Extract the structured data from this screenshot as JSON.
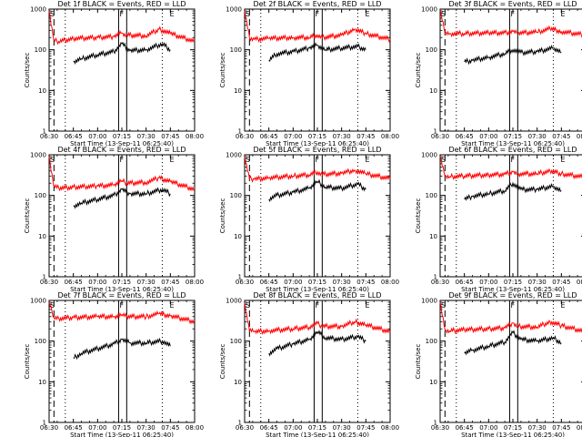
{
  "chart_data": [
    {
      "type": "line",
      "title": "Det 1f BLACK = Events, RED = LLD",
      "xlabel": "Start Time (13-Sep-11 06:25:40)",
      "ylabel": "Counts/sec",
      "yscale": "log",
      "ylim": [
        1,
        1000
      ],
      "xlim": [
        "06:30",
        "08:00"
      ],
      "xticks": [
        "06:30",
        "06:45",
        "07:00",
        "07:15",
        "07:30",
        "07:45",
        "08:00"
      ],
      "yticks": [
        "1",
        "10",
        "100",
        "1000"
      ],
      "markers": [
        "S",
        "F",
        "E"
      ],
      "series": [
        {
          "name": "RED",
          "color": "#ff0000",
          "x": [
            "06:30",
            "06:33",
            "06:36",
            "06:45",
            "07:00",
            "07:10",
            "07:15",
            "07:18",
            "07:30",
            "07:38",
            "07:45",
            "08:00"
          ],
          "y": [
            900,
            170,
            160,
            190,
            200,
            210,
            260,
            230,
            220,
            320,
            250,
            160
          ]
        },
        {
          "name": "BLACK",
          "color": "#000000",
          "x": [
            "06:45",
            "06:50",
            "07:00",
            "07:10",
            "07:15",
            "07:20",
            "07:30",
            "07:40",
            "07:45"
          ],
          "y": [
            50,
            60,
            75,
            90,
            140,
            95,
            100,
            140,
            100
          ]
        }
      ]
    },
    {
      "type": "line",
      "title": "Det 2f BLACK = Events, RED = LLD",
      "xlabel": "Start Time (13-Sep-11 06:25:40)",
      "ylabel": "Counts/sec",
      "yscale": "log",
      "ylim": [
        1,
        1000
      ],
      "xlim": [
        "06:30",
        "08:00"
      ],
      "xticks": [
        "06:30",
        "06:45",
        "07:00",
        "07:15",
        "07:30",
        "07:45",
        "08:00"
      ],
      "yticks": [
        "1",
        "10",
        "100",
        "1000"
      ],
      "markers": [
        "S",
        "F",
        "E"
      ],
      "series": [
        {
          "name": "RED",
          "color": "#ff0000",
          "x": [
            "06:30",
            "06:33",
            "06:36",
            "06:45",
            "07:00",
            "07:10",
            "07:15",
            "07:18",
            "07:30",
            "07:38",
            "07:45",
            "08:00"
          ],
          "y": [
            900,
            200,
            180,
            190,
            200,
            200,
            230,
            200,
            230,
            320,
            250,
            180
          ]
        },
        {
          "name": "BLACK",
          "color": "#000000",
          "x": [
            "06:45",
            "06:50",
            "07:00",
            "07:10",
            "07:15",
            "07:20",
            "07:30",
            "07:40",
            "07:45"
          ],
          "y": [
            55,
            80,
            90,
            110,
            130,
            100,
            110,
            120,
            100
          ]
        }
      ]
    },
    {
      "type": "line",
      "title": "Det 3f BLACK = Events, RED = LLD",
      "xlabel": "Start Time (13-Sep-11 06:25:40)",
      "ylabel": "Counts/sec",
      "yscale": "log",
      "ylim": [
        1,
        1000
      ],
      "xlim": [
        "06:30",
        "08:00"
      ],
      "xticks": [
        "06:30",
        "06:45",
        "07:00",
        "07:15",
        "07:30",
        "07:45",
        "08:00"
      ],
      "yticks": [
        "1",
        "10",
        "100",
        "1000"
      ],
      "markers": [
        "S",
        "F",
        "E"
      ],
      "series": [
        {
          "name": "RED",
          "color": "#ff0000",
          "x": [
            "06:30",
            "06:33",
            "06:36",
            "06:45",
            "07:00",
            "07:10",
            "07:15",
            "07:18",
            "07:30",
            "07:38",
            "07:45",
            "08:00"
          ],
          "y": [
            900,
            260,
            250,
            250,
            260,
            260,
            280,
            260,
            270,
            330,
            280,
            230
          ]
        },
        {
          "name": "BLACK",
          "color": "#000000",
          "x": [
            "06:45",
            "06:50",
            "07:00",
            "07:10",
            "07:15",
            "07:20",
            "07:30",
            "07:40",
            "07:45"
          ],
          "y": [
            50,
            55,
            65,
            80,
            100,
            85,
            90,
            110,
            85
          ]
        }
      ]
    },
    {
      "type": "line",
      "title": "Det 4f BLACK = Events, RED = LLD",
      "xlabel": "Start Time (13-Sep-11 06:25:40)",
      "ylabel": "Counts/sec",
      "yscale": "log",
      "ylim": [
        1,
        1000
      ],
      "xlim": [
        "06:30",
        "08:00"
      ],
      "xticks": [
        "06:30",
        "06:45",
        "07:00",
        "07:15",
        "07:30",
        "07:45",
        "08:00"
      ],
      "yticks": [
        "1",
        "10",
        "100",
        "1000"
      ],
      "markers": [
        "S",
        "F",
        "E"
      ],
      "series": [
        {
          "name": "RED",
          "color": "#ff0000",
          "x": [
            "06:30",
            "06:33",
            "06:36",
            "06:45",
            "07:00",
            "07:10",
            "07:15",
            "07:18",
            "07:30",
            "07:38",
            "07:45",
            "08:00"
          ],
          "y": [
            900,
            170,
            150,
            160,
            170,
            180,
            230,
            200,
            210,
            270,
            220,
            140
          ]
        },
        {
          "name": "BLACK",
          "color": "#000000",
          "x": [
            "06:45",
            "06:50",
            "07:00",
            "07:10",
            "07:15",
            "07:20",
            "07:30",
            "07:40",
            "07:45"
          ],
          "y": [
            55,
            65,
            80,
            100,
            140,
            110,
            110,
            140,
            110
          ]
        }
      ]
    },
    {
      "type": "line",
      "title": "Det 5f BLACK = Events, RED = LLD",
      "xlabel": "Start Time (13-Sep-11 06:25:40)",
      "ylabel": "Counts/sec",
      "yscale": "log",
      "ylim": [
        1,
        1000
      ],
      "xlim": [
        "06:30",
        "08:00"
      ],
      "xticks": [
        "06:30",
        "06:45",
        "07:00",
        "07:15",
        "07:30",
        "07:45",
        "08:00"
      ],
      "yticks": [
        "1",
        "10",
        "100",
        "1000"
      ],
      "markers": [
        "S",
        "F",
        "E"
      ],
      "series": [
        {
          "name": "RED",
          "color": "#ff0000",
          "x": [
            "06:30",
            "06:33",
            "06:36",
            "06:45",
            "07:00",
            "07:10",
            "07:15",
            "07:18",
            "07:30",
            "07:38",
            "07:45",
            "08:00"
          ],
          "y": [
            900,
            260,
            250,
            270,
            300,
            320,
            380,
            330,
            350,
            420,
            340,
            260
          ]
        },
        {
          "name": "BLACK",
          "color": "#000000",
          "x": [
            "06:45",
            "06:50",
            "07:00",
            "07:10",
            "07:15",
            "07:20",
            "07:30",
            "07:40",
            "07:45"
          ],
          "y": [
            80,
            100,
            120,
            150,
            220,
            160,
            150,
            190,
            140
          ]
        }
      ]
    },
    {
      "type": "line",
      "title": "Det 6f BLACK = Events, RED = LLD",
      "xlabel": "Start Time (13-Sep-11 06:25:40)",
      "ylabel": "Counts/sec",
      "yscale": "log",
      "ylim": [
        1,
        1000
      ],
      "xlim": [
        "06:30",
        "08:00"
      ],
      "xticks": [
        "06:30",
        "06:45",
        "07:00",
        "07:15",
        "07:30",
        "07:45",
        "08:00"
      ],
      "yticks": [
        "1",
        "10",
        "100",
        "1000"
      ],
      "markers": [
        "S",
        "F",
        "E"
      ],
      "series": [
        {
          "name": "RED",
          "color": "#ff0000",
          "x": [
            "06:30",
            "06:33",
            "06:36",
            "06:45",
            "07:00",
            "07:10",
            "07:15",
            "07:18",
            "07:30",
            "07:38",
            "07:45",
            "08:00"
          ],
          "y": [
            900,
            300,
            290,
            300,
            320,
            330,
            380,
            340,
            340,
            400,
            340,
            280
          ]
        },
        {
          "name": "BLACK",
          "color": "#000000",
          "x": [
            "06:45",
            "06:50",
            "07:00",
            "07:10",
            "07:15",
            "07:20",
            "07:30",
            "07:40",
            "07:45"
          ],
          "y": [
            80,
            95,
            110,
            130,
            200,
            140,
            140,
            170,
            130
          ]
        }
      ]
    },
    {
      "type": "line",
      "title": "Det 7f BLACK = Events, RED = LLD",
      "xlabel": "Start Time (13-Sep-11 06:25:40)",
      "ylabel": "Counts/sec",
      "yscale": "log",
      "ylim": [
        1,
        1000
      ],
      "xlim": [
        "06:30",
        "08:00"
      ],
      "xticks": [
        "06:30",
        "06:45",
        "07:00",
        "07:15",
        "07:30",
        "07:45",
        "08:00"
      ],
      "yticks": [
        "1",
        "10",
        "100",
        "1000"
      ],
      "markers": [
        "S",
        "F",
        "E"
      ],
      "series": [
        {
          "name": "RED",
          "color": "#ff0000",
          "x": [
            "06:30",
            "06:33",
            "06:36",
            "06:45",
            "07:00",
            "07:10",
            "07:15",
            "07:18",
            "07:30",
            "07:38",
            "07:45",
            "08:00"
          ],
          "y": [
            900,
            380,
            360,
            380,
            400,
            400,
            450,
            400,
            400,
            470,
            420,
            300
          ]
        },
        {
          "name": "BLACK",
          "color": "#000000",
          "x": [
            "06:45",
            "06:50",
            "07:00",
            "07:10",
            "07:15",
            "07:20",
            "07:30",
            "07:40",
            "07:45"
          ],
          "y": [
            38,
            50,
            65,
            85,
            110,
            90,
            90,
            100,
            75
          ]
        }
      ]
    },
    {
      "type": "line",
      "title": "Det 8f BLACK = Events, RED = LLD",
      "xlabel": "Start Time (13-Sep-11 06:25:40)",
      "ylabel": "Counts/sec",
      "yscale": "log",
      "ylim": [
        1,
        1000
      ],
      "xlim": [
        "06:30",
        "08:00"
      ],
      "xticks": [
        "06:30",
        "06:45",
        "07:00",
        "07:15",
        "07:30",
        "07:45",
        "08:00"
      ],
      "yticks": [
        "1",
        "10",
        "100",
        "1000"
      ],
      "markers": [
        "S",
        "F",
        "E"
      ],
      "series": [
        {
          "name": "RED",
          "color": "#ff0000",
          "x": [
            "06:30",
            "06:33",
            "06:36",
            "06:45",
            "07:00",
            "07:10",
            "07:15",
            "07:18",
            "07:30",
            "07:38",
            "07:45",
            "08:00"
          ],
          "y": [
            900,
            180,
            170,
            180,
            200,
            220,
            270,
            230,
            230,
            300,
            250,
            170
          ]
        },
        {
          "name": "BLACK",
          "color": "#000000",
          "x": [
            "06:45",
            "06:50",
            "07:00",
            "07:10",
            "07:15",
            "07:20",
            "07:30",
            "07:40",
            "07:45"
          ],
          "y": [
            50,
            65,
            85,
            110,
            170,
            120,
            110,
            130,
            100
          ]
        }
      ]
    },
    {
      "type": "line",
      "title": "Det 9f BLACK = Events, RED = LLD",
      "xlabel": "Start Time (13-Sep-11 06:25:40)",
      "ylabel": "Counts/sec",
      "yscale": "log",
      "ylim": [
        1,
        1000
      ],
      "xlim": [
        "06:30",
        "08:00"
      ],
      "xticks": [
        "06:30",
        "06:45",
        "07:00",
        "07:15",
        "07:30",
        "07:45",
        "08:00"
      ],
      "yticks": [
        "1",
        "10",
        "100",
        "1000"
      ],
      "markers": [
        "S",
        "F",
        "E"
      ],
      "series": [
        {
          "name": "RED",
          "color": "#ff0000",
          "x": [
            "06:30",
            "06:33",
            "06:36",
            "06:45",
            "07:00",
            "07:10",
            "07:15",
            "07:18",
            "07:30",
            "07:38",
            "07:45",
            "08:00"
          ],
          "y": [
            900,
            190,
            180,
            190,
            200,
            210,
            280,
            230,
            220,
            300,
            240,
            170
          ]
        },
        {
          "name": "BLACK",
          "color": "#000000",
          "x": [
            "06:45",
            "06:50",
            "07:00",
            "07:10",
            "07:15",
            "07:20",
            "07:30",
            "07:40",
            "07:45"
          ],
          "y": [
            50,
            60,
            75,
            95,
            160,
            110,
            100,
            120,
            90
          ]
        }
      ]
    }
  ]
}
